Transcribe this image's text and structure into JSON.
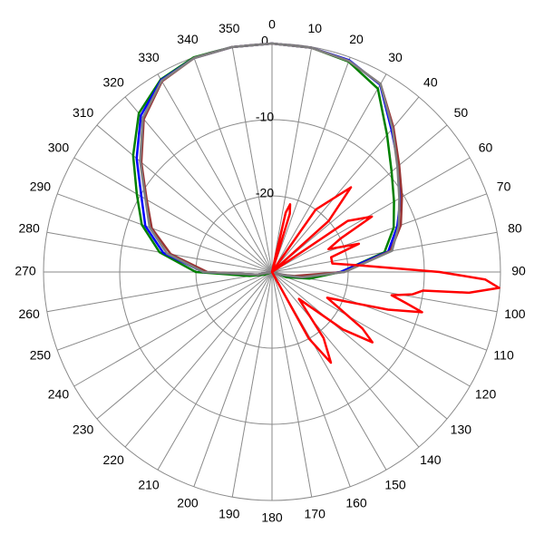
{
  "chart_data": {
    "type": "polar",
    "rlim": [
      -30,
      0
    ],
    "rticks": [
      -20,
      -10,
      0
    ],
    "thetaticks": [
      0,
      10,
      20,
      30,
      40,
      50,
      60,
      70,
      80,
      90,
      100,
      110,
      120,
      130,
      140,
      150,
      160,
      170,
      180,
      190,
      200,
      210,
      220,
      230,
      240,
      250,
      260,
      270,
      280,
      290,
      300,
      310,
      320,
      330,
      340,
      350
    ],
    "grid": true,
    "series": [
      {
        "color": "#008000",
        "theta": [
          0,
          10,
          20,
          30,
          40,
          50,
          60,
          70,
          80,
          90,
          100,
          110,
          120,
          130,
          140,
          150,
          160,
          170,
          180,
          190,
          200,
          210,
          220,
          230,
          240,
          250,
          260,
          270,
          280,
          290,
          300,
          310,
          320,
          330,
          340,
          350
        ],
        "values": [
          0,
          -0.1,
          -0.6,
          -2.2,
          -6.5,
          -9.5,
          -11.5,
          -13,
          -15,
          -21,
          -25,
          -28,
          -30,
          -30,
          -30,
          -30,
          -30,
          -30,
          -30,
          -30,
          -30,
          -30,
          -30,
          -30,
          -30,
          -29,
          -27,
          -20,
          -15,
          -11.8,
          -9.5,
          -6.2,
          -2.8,
          -0.8,
          0,
          0
        ]
      },
      {
        "color": "#0000ff",
        "theta": [
          0,
          10,
          20,
          30,
          40,
          50,
          60,
          70,
          80,
          90,
          100,
          110,
          120,
          130,
          140,
          150,
          160,
          170,
          180,
          190,
          200,
          210,
          220,
          230,
          240,
          250,
          260,
          270,
          280,
          290,
          300,
          310,
          320,
          330,
          340,
          350
        ],
        "values": [
          0,
          -0.1,
          -0.4,
          -1.6,
          -5.6,
          -8.3,
          -10.5,
          -12.5,
          -14.5,
          -21,
          -26,
          -29,
          -30,
          -30,
          -30,
          -30,
          -30,
          -30,
          -30,
          -30,
          -30,
          -30,
          -30,
          -30,
          -30,
          -30,
          -28,
          -21,
          -15.5,
          -12.3,
          -10.2,
          -6.8,
          -3.2,
          -0.9,
          -0.1,
          0
        ]
      },
      {
        "color": "#993333",
        "theta": [
          0,
          10,
          20,
          30,
          40,
          50,
          60,
          70,
          80,
          90,
          100,
          110,
          120,
          130,
          140,
          150,
          160,
          170,
          180,
          190,
          200,
          210,
          220,
          230,
          240,
          250,
          260,
          270,
          280,
          290,
          300,
          310,
          320,
          330,
          340,
          350
        ],
        "values": [
          0,
          -0.1,
          -0.5,
          -1.5,
          -5.2,
          -8.2,
          -10.3,
          -12,
          -14.2,
          -20.5,
          -27,
          -29,
          -30,
          -30,
          -30,
          -30,
          -30,
          -30,
          -30,
          -30,
          -30,
          -30,
          -30,
          -30,
          -30,
          -30,
          -28,
          -21.5,
          -16.5,
          -13.2,
          -11,
          -7.6,
          -3.8,
          -1.1,
          -0.1,
          0
        ]
      },
      {
        "color": "#808080",
        "theta": [
          0,
          10,
          20,
          30,
          40,
          50,
          60,
          70,
          80,
          90,
          100,
          110,
          120,
          130,
          140,
          150,
          160,
          170,
          180,
          190,
          200,
          210,
          220,
          230,
          240,
          250,
          260,
          270,
          280,
          290,
          300,
          310,
          320,
          330,
          340,
          350
        ],
        "values": [
          0,
          -0.1,
          -0.5,
          -1.5,
          -5.4,
          -8.5,
          -10.7,
          -12.3,
          -14,
          -20.5,
          -26,
          -29,
          -30,
          -30,
          -30,
          -30,
          -30,
          -30,
          -30,
          -30,
          -30,
          -30,
          -30,
          -30,
          -30,
          -30,
          -28,
          -21,
          -16,
          -12.9,
          -10.8,
          -7.4,
          -3.6,
          -1,
          -0.1,
          0
        ]
      },
      {
        "color": "#ff0000",
        "theta": [
          0,
          10,
          13,
          15,
          17,
          20,
          35,
          43,
          48,
          52,
          56,
          61,
          64,
          68,
          72,
          76,
          82,
          86,
          90,
          92,
          94,
          96,
          97,
          99,
          101,
          103,
          105,
          108,
          115,
          122,
          125,
          129,
          135,
          142,
          147,
          151,
          156,
          160
        ],
        "values": [
          -30,
          -30,
          -22,
          -20.8,
          -22,
          -30,
          -20,
          -14.8,
          -20,
          -30,
          -18,
          -15,
          -20,
          -22,
          -18,
          -22,
          -22,
          -18,
          -8,
          -2,
          -0.1,
          -4,
          -10,
          -11.3,
          -14,
          -12,
          -9.6,
          -14,
          -22,
          -16,
          -13.9,
          -18,
          -25,
          -19,
          -15.8,
          -20,
          -30,
          -30
        ]
      }
    ]
  }
}
